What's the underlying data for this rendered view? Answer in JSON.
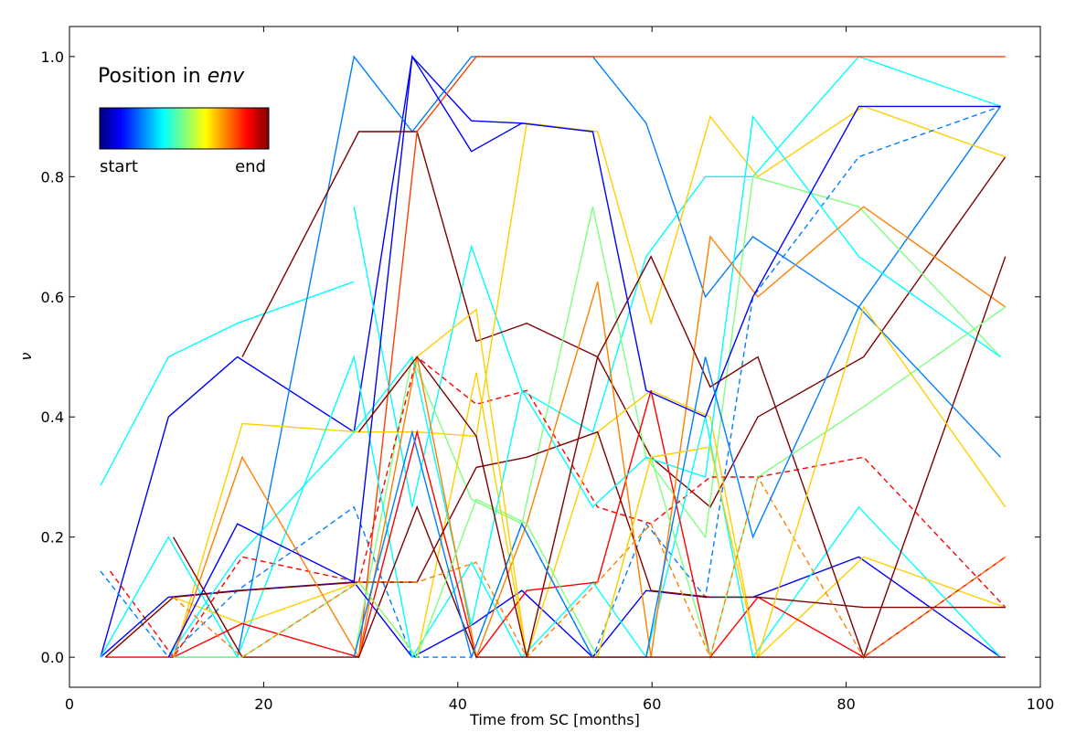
{
  "chart_data": {
    "type": "line",
    "xlabel": "Time from SC [months]",
    "ylabel": "ν",
    "xlim": [
      0,
      100
    ],
    "ylim": [
      -0.05,
      1.05
    ],
    "xticks": [
      0,
      20,
      40,
      60,
      80,
      100
    ],
    "yticks": [
      0.0,
      0.2,
      0.4,
      0.6,
      0.8,
      1.0
    ],
    "x_tick_labels": [
      "0",
      "20",
      "40",
      "60",
      "80",
      "100"
    ],
    "y_tick_labels": [
      "0.0",
      "0.2",
      "0.4",
      "0.6",
      "0.8",
      "1.0"
    ],
    "grid": false,
    "legend": {
      "title_prefix": "Position in ",
      "title_italic": "env",
      "start_label": "start",
      "end_label": "end",
      "colormap": [
        "#00007f",
        "#0000ff",
        "#007fff",
        "#00ffff",
        "#7fff7f",
        "#ffff00",
        "#ff7f00",
        "#ff0000",
        "#7f0000"
      ],
      "placement": "top-left"
    },
    "series": [
      {
        "color": "#00ffff",
        "style": "solid",
        "x": [
          3.2,
          10.2,
          17.3,
          29.3
        ],
        "y": [
          0.286,
          0.5,
          0.556,
          0.625
        ]
      },
      {
        "color": "#0000ff",
        "style": "solid",
        "x": [
          3.2,
          10.2,
          17.3,
          29.3,
          35.3,
          41.4,
          46.6,
          53.9
        ],
        "y": [
          0.0,
          0.4,
          0.5,
          0.375,
          1.0,
          0.893,
          0.889,
          0.875
        ]
      },
      {
        "color": "#007fff",
        "style": "solid",
        "x": [
          10.2,
          17.3,
          29.3,
          35.3,
          41.4,
          46.6,
          53.9,
          59.4,
          65.5,
          70.4,
          81.3,
          95.9
        ],
        "y": [
          0.0,
          0.0,
          1.0,
          0.875,
          1.0,
          1.0,
          1.0,
          0.889,
          0.6,
          0.7,
          0.583,
          0.917
        ]
      },
      {
        "color": "#00ffff",
        "style": "solid",
        "x": [
          29.3,
          35.3,
          41.4,
          46.6,
          53.9,
          59.4,
          65.5,
          70.4,
          81.3,
          95.9
        ],
        "y": [
          0.75,
          0.25,
          0.684,
          0.444,
          0.375,
          0.667,
          0.8,
          0.8,
          1.0,
          0.917
        ]
      },
      {
        "color": "#7f0000",
        "style": "solid",
        "x": [
          17.8,
          29.8,
          35.8,
          41.9,
          47.1,
          54.4,
          59.9,
          66.0,
          70.9,
          81.8,
          96.4
        ],
        "y": [
          0.5,
          0.875,
          0.875,
          0.526,
          0.556,
          0.5,
          0.333,
          0.25,
          0.4,
          0.5,
          0.833
        ]
      },
      {
        "color": "#ff3f00",
        "style": "solid",
        "x": [
          29.8,
          35.8,
          41.9,
          47.1,
          54.4,
          59.9,
          66.0,
          70.9,
          81.8,
          96.4
        ],
        "y": [
          0.0,
          0.875,
          1.0,
          1.0,
          1.0,
          1.0,
          1.0,
          1.0,
          1.0,
          1.0
        ]
      },
      {
        "color": "#ffcf00",
        "style": "solid",
        "x": [
          10.7,
          17.8,
          29.8,
          35.8,
          41.9,
          47.1,
          54.4,
          59.9,
          66.0,
          70.9,
          81.8,
          96.4
        ],
        "y": [
          0.0,
          0.389,
          0.375,
          0.375,
          0.368,
          0.889,
          0.875,
          0.556,
          0.9,
          0.8,
          0.917,
          0.833
        ]
      },
      {
        "color": "#7fff7f",
        "style": "solid",
        "x": [
          29.3,
          35.3,
          41.4,
          46.6,
          53.9,
          59.4,
          65.5,
          70.4,
          81.3,
          95.9
        ],
        "y": [
          0.0,
          0.5,
          0.263,
          0.222,
          0.75,
          0.333,
          0.2,
          0.8,
          0.75,
          0.5
        ]
      },
      {
        "color": "#007fff",
        "style": "dashed",
        "x": [
          3.2,
          10.2,
          17.3,
          29.3,
          35.3,
          41.4,
          46.6,
          53.9,
          59.4,
          65.5,
          70.4,
          81.3,
          95.9
        ],
        "y": [
          0.143,
          0.0,
          0.111,
          0.25,
          0.0,
          0.0,
          0.222,
          0.0,
          0.222,
          0.1,
          0.6,
          0.833,
          0.917
        ]
      },
      {
        "color": "#ff0000",
        "style": "dashed",
        "x": [
          4.2,
          10.7,
          17.8,
          29.8,
          35.8,
          41.9,
          47.1,
          54.4,
          59.9,
          66.0,
          70.9,
          81.8,
          96.4
        ],
        "y": [
          0.143,
          0.0,
          0.167,
          0.125,
          0.5,
          0.421,
          0.444,
          0.25,
          0.222,
          0.3,
          0.3,
          0.333,
          0.083
        ]
      },
      {
        "color": "#0000ff",
        "style": "solid",
        "x": [
          3.2,
          10.2,
          17.3,
          29.3,
          35.3,
          41.4,
          46.6,
          53.9,
          59.4,
          65.5,
          70.4,
          81.3,
          95.9
        ],
        "y": [
          0.0,
          0.1,
          0.111,
          0.125,
          0.0,
          0.053,
          0.111,
          0.0,
          0.111,
          0.1,
          0.1,
          0.167,
          0.0
        ]
      },
      {
        "color": "#00ffff",
        "style": "solid",
        "x": [
          3.2,
          10.2,
          17.3,
          29.3,
          35.3,
          41.4,
          46.6,
          53.9,
          59.4,
          65.5,
          70.4,
          81.3,
          95.9
        ],
        "y": [
          0.0,
          0.2,
          0.0,
          0.5,
          0.0,
          0.158,
          0.0,
          0.125,
          0.0,
          0.4,
          0.0,
          0.25,
          0.0
        ]
      },
      {
        "color": "#ffcf00",
        "style": "solid",
        "x": [
          3.7,
          10.7,
          17.8,
          29.8,
          35.8,
          41.9,
          47.1,
          54.4,
          59.9,
          66.0,
          70.9,
          81.8,
          96.4
        ],
        "y": [
          0.0,
          0.1,
          0.056,
          0.125,
          0.0,
          0.474,
          0.0,
          0.375,
          0.444,
          0.4,
          0.0,
          0.167,
          0.083
        ]
      },
      {
        "color": "#ff0000",
        "style": "solid",
        "x": [
          3.7,
          10.7,
          17.8,
          29.8,
          35.8,
          41.9,
          47.1,
          54.4,
          59.9,
          66.0,
          70.9,
          81.8,
          96.4
        ],
        "y": [
          0.0,
          0.0,
          0.056,
          0.0,
          0.375,
          0.0,
          0.111,
          0.125,
          0.444,
          0.0,
          0.1,
          0.0,
          0.167
        ]
      },
      {
        "color": "#7f0000",
        "style": "solid",
        "x": [
          3.7,
          10.7,
          17.8,
          29.8,
          35.8,
          41.9,
          47.1,
          54.4,
          59.9,
          66.0,
          70.9,
          81.8,
          96.4
        ],
        "y": [
          0.0,
          0.1,
          0.111,
          0.125,
          0.125,
          0.316,
          0.333,
          0.375,
          0.111,
          0.1,
          0.1,
          0.083,
          0.083
        ]
      },
      {
        "color": "#00ffff",
        "style": "solid",
        "x": [
          10.2,
          17.3,
          29.3,
          35.3,
          41.4,
          46.6,
          53.9,
          59.4,
          65.5,
          70.4,
          81.3,
          95.9
        ],
        "y": [
          0.0,
          0.167,
          0.375,
          0.5,
          0.053,
          0.444,
          0.25,
          0.333,
          0.3,
          0.9,
          0.667,
          0.5
        ]
      },
      {
        "color": "#ff7f00",
        "style": "solid",
        "x": [
          10.7,
          17.8,
          29.8,
          35.8,
          41.9,
          47.1,
          54.4,
          59.9,
          66.0,
          70.9,
          81.8,
          96.4
        ],
        "y": [
          0.0,
          0.333,
          0.0,
          0.5,
          0.0,
          0.222,
          0.625,
          0.0,
          0.7,
          0.6,
          0.75,
          0.583
        ]
      },
      {
        "color": "#7f0000",
        "style": "solid",
        "x": [
          10.7,
          17.8,
          29.8,
          35.8,
          41.9,
          47.1,
          54.4,
          59.9,
          66.0,
          70.9,
          81.8,
          96.4
        ],
        "y": [
          0.2,
          0.0,
          0.0,
          0.25,
          0.0,
          0.0,
          0.5,
          0.667,
          0.45,
          0.5,
          0.0,
          0.667
        ]
      },
      {
        "color": "#0000ff",
        "style": "solid",
        "x": [
          10.2,
          17.3,
          29.3,
          35.3,
          41.4,
          46.6,
          53.9,
          59.4,
          65.5,
          70.4,
          81.3,
          95.9
        ],
        "y": [
          0.0,
          0.222,
          0.125,
          1.0,
          0.842,
          0.889,
          0.875,
          0.444,
          0.4,
          0.6,
          0.917,
          0.917
        ]
      },
      {
        "color": "#7fff7f",
        "style": "solid",
        "x": [
          10.7,
          17.8,
          29.8,
          35.8,
          41.9,
          47.1,
          54.4,
          59.9,
          66.0,
          70.9,
          81.8,
          96.4
        ],
        "y": [
          0.0,
          0.0,
          0.125,
          0.0,
          0.263,
          0.222,
          0.0,
          0.333,
          0.0,
          0.3,
          0.417,
          0.583
        ]
      },
      {
        "color": "#ff7f00",
        "style": "dashed",
        "x": [
          10.7,
          17.8,
          29.8,
          35.8,
          41.9,
          47.1,
          54.4,
          59.9,
          66.0,
          70.9,
          81.8,
          96.4
        ],
        "y": [
          0.1,
          0.0,
          0.125,
          0.125,
          0.158,
          0.0,
          0.125,
          0.222,
          0.0,
          0.3,
          0.0,
          0.167
        ]
      },
      {
        "color": "#007fff",
        "style": "solid",
        "x": [
          29.3,
          35.3,
          41.4,
          46.6,
          53.9,
          59.4,
          65.5,
          70.4,
          81.3,
          95.9
        ],
        "y": [
          0.0,
          0.375,
          0.0,
          0.222,
          0.0,
          0.0,
          0.5,
          0.2,
          0.583,
          0.333
        ]
      },
      {
        "color": "#ffcf00",
        "style": "solid",
        "x": [
          29.8,
          35.8,
          41.9,
          47.1,
          54.4,
          59.9,
          66.0,
          70.9,
          81.8,
          96.4
        ],
        "y": [
          0.375,
          0.5,
          0.579,
          0.0,
          0.0,
          0.333,
          0.35,
          0.0,
          0.583,
          0.25
        ]
      },
      {
        "color": "#7f0000",
        "style": "solid",
        "x": [
          29.8,
          35.8,
          41.9,
          47.1,
          54.4,
          59.9,
          66.0,
          70.9,
          81.8,
          96.4
        ],
        "y": [
          0.375,
          0.5,
          0.368,
          0.0,
          0.0,
          0.0,
          0.0,
          0.0,
          0.0,
          0.0
        ]
      }
    ]
  }
}
